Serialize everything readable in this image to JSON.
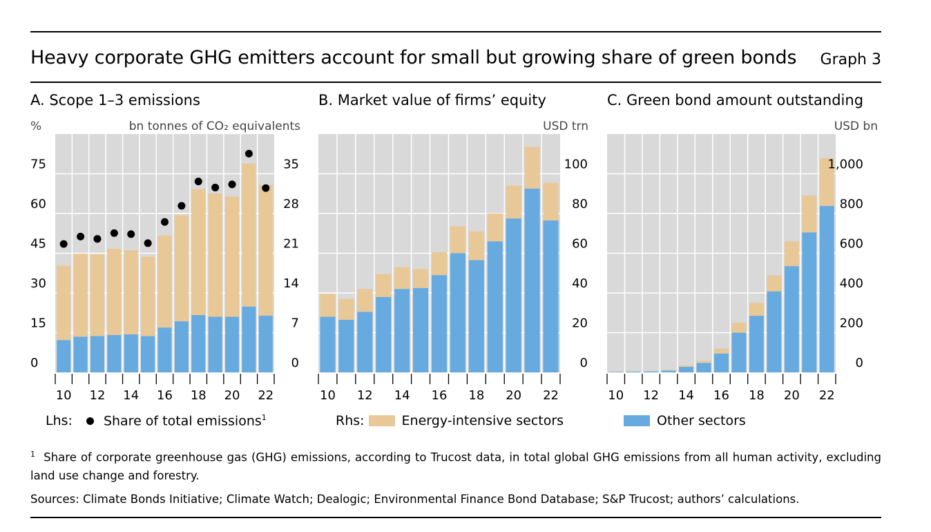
{
  "header": {
    "title": "Heavy corporate GHG emitters account for small but growing share of green bonds",
    "graph_label": "Graph 3"
  },
  "colors": {
    "energy": "#e8c896",
    "other": "#66aadf",
    "plot_bg": "#d9d9d9",
    "dot": "#000000"
  },
  "legend": {
    "lhs_prefix": "Lhs:",
    "share_label": "Share of total emissions",
    "share_sup": "1",
    "rhs_prefix": "Rhs:",
    "energy_label": "Energy-intensive sectors",
    "other_label": "Other sectors"
  },
  "footnote": {
    "marker": "1",
    "text": "Share of corporate greenhouse gas (GHG) emissions, according to Trucost data, in total global GHG emissions from all human activity, excluding land use change and forestry."
  },
  "sources": "Sources: Climate Bonds Initiative; Climate Watch; Dealogic; Environmental Finance Bond Database; S&P Trucost; authors’ calculations.",
  "chart_data": [
    {
      "id": "A",
      "type": "bar",
      "title": "A. Scope 1–3 emissions",
      "left_unit": "%",
      "right_unit": "bn tonnes of CO₂ equivalents",
      "x": [
        2010,
        2011,
        2012,
        2013,
        2014,
        2015,
        2016,
        2017,
        2018,
        2019,
        2020,
        2021,
        2022
      ],
      "x_tick_labels": [
        "10",
        "12",
        "14",
        "16",
        "18",
        "20",
        "22"
      ],
      "y_left_ticks": [
        "0",
        "15",
        "30",
        "45",
        "60",
        "75"
      ],
      "y_right_ticks": [
        "0",
        "7",
        "14",
        "21",
        "28",
        "35"
      ],
      "ylim_left": [
        0,
        90
      ],
      "ylim_right": [
        0,
        42
      ],
      "series": [
        {
          "name": "Other sectors",
          "axis": "right",
          "stack": true,
          "values": [
            5.7,
            6.3,
            6.4,
            6.6,
            6.7,
            6.4,
            7.9,
            9.0,
            10.1,
            9.8,
            9.8,
            11.6,
            10.0
          ]
        },
        {
          "name": "Energy-intensive sectors",
          "axis": "right",
          "stack": true,
          "values": [
            13.1,
            14.6,
            14.4,
            15.2,
            14.8,
            14.0,
            16.2,
            18.7,
            22.2,
            21.7,
            21.2,
            25.2,
            23.0
          ]
        },
        {
          "name": "Share of total emissions",
          "axis": "left",
          "kind": "dot",
          "values": [
            48.5,
            51.3,
            50.4,
            52.6,
            52.2,
            48.8,
            56.8,
            62.9,
            72.1,
            69.8,
            71.0,
            82.6,
            69.6
          ]
        }
      ]
    },
    {
      "id": "B",
      "type": "bar",
      "title": "B. Market value of firms’ equity",
      "right_unit": "USD trn",
      "x": [
        2010,
        2011,
        2012,
        2013,
        2014,
        2015,
        2016,
        2017,
        2018,
        2019,
        2020,
        2021,
        2022
      ],
      "x_tick_labels": [
        "10",
        "12",
        "14",
        "16",
        "18",
        "20",
        "22"
      ],
      "y_right_ticks": [
        "0",
        "20",
        "40",
        "60",
        "80",
        "100"
      ],
      "ylim_right": [
        0,
        120
      ],
      "series": [
        {
          "name": "Other sectors",
          "stack": true,
          "values": [
            28,
            26.5,
            30.5,
            38,
            42,
            42.5,
            49,
            60,
            56.5,
            66,
            77.5,
            92.5,
            76.5
          ]
        },
        {
          "name": "Energy-intensive sectors",
          "stack": true,
          "values": [
            11.5,
            10.5,
            11.5,
            11.5,
            11,
            9.5,
            11.5,
            13.5,
            14.5,
            14,
            16.5,
            21,
            19
          ]
        }
      ]
    },
    {
      "id": "C",
      "type": "bar",
      "title": "C. Green bond amount outstanding",
      "right_unit": "USD bn",
      "x": [
        2010,
        2011,
        2012,
        2013,
        2014,
        2015,
        2016,
        2017,
        2018,
        2019,
        2020,
        2021,
        2022
      ],
      "x_tick_labels": [
        "10",
        "12",
        "14",
        "16",
        "18",
        "20",
        "22"
      ],
      "y_right_ticks": [
        "0",
        "200",
        "400",
        "600",
        "800",
        "1,000"
      ],
      "ylim_right": [
        0,
        1200
      ],
      "series": [
        {
          "name": "Other sectors",
          "stack": true,
          "values": [
            3,
            4,
            5,
            9,
            28,
            48,
            95,
            200,
            285,
            408,
            535,
            705,
            838
          ]
        },
        {
          "name": "Energy-intensive sectors",
          "stack": true,
          "values": [
            1,
            1,
            1,
            3,
            7,
            10,
            25,
            50,
            65,
            80,
            125,
            185,
            240
          ]
        }
      ]
    }
  ]
}
